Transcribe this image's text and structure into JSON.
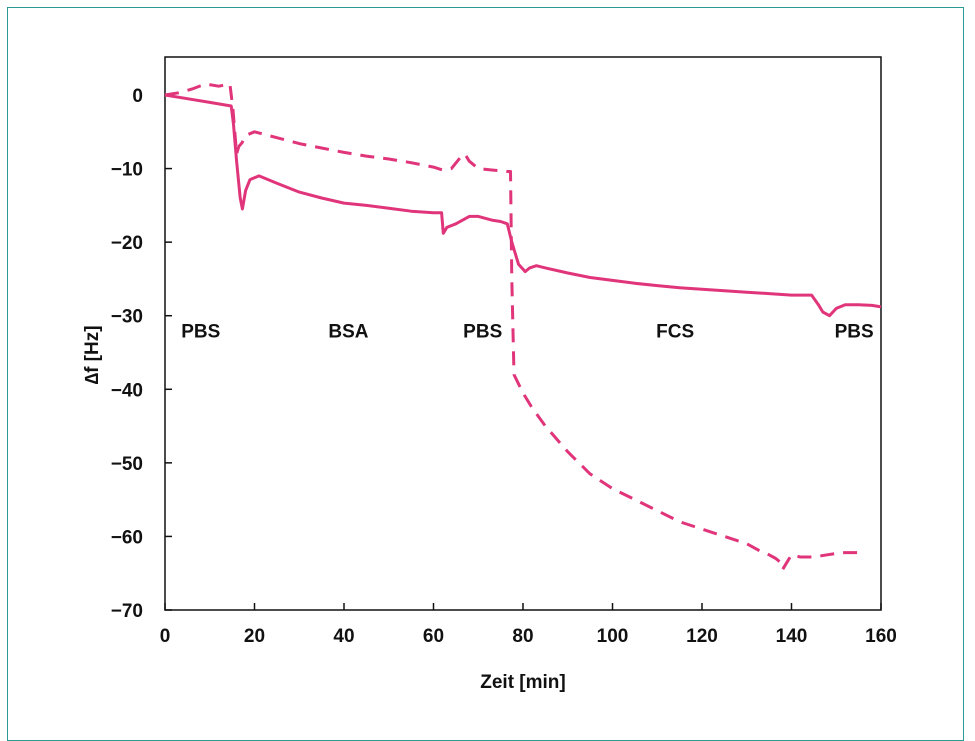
{
  "chart_data": {
    "type": "line",
    "title": "",
    "xlabel": "Zeit [min]",
    "ylabel": "∆f [Hz]",
    "xlim": [
      0,
      160
    ],
    "ylim": [
      -70,
      5
    ],
    "xticks": [
      "0",
      "20",
      "40",
      "60",
      "80",
      "100",
      "120",
      "140",
      "160"
    ],
    "yticks": [
      "0",
      "−10",
      "−20",
      "−30",
      "−40",
      "−50",
      "−60",
      "−70"
    ],
    "xtick_values": [
      0,
      20,
      40,
      60,
      80,
      100,
      120,
      140,
      160
    ],
    "ytick_values": [
      0,
      -10,
      -20,
      -30,
      -40,
      -50,
      -60,
      -70
    ],
    "grid": false,
    "legend": "none",
    "color": "#e0357a",
    "phase_labels": [
      {
        "text": "PBS",
        "x": 8,
        "y": -32
      },
      {
        "text": "BSA",
        "x": 41,
        "y": -32
      },
      {
        "text": "PBS",
        "x": 71,
        "y": -32
      },
      {
        "text": "FCS",
        "x": 114,
        "y": -32
      },
      {
        "text": "PBS",
        "x": 154,
        "y": -32
      }
    ],
    "series": [
      {
        "style": "solid",
        "x": [
          0,
          5,
          10,
          14.8,
          15.3,
          16,
          16.8,
          17.3,
          18,
          19,
          21,
          25,
          30,
          35,
          40,
          45,
          50,
          55,
          60,
          61.8,
          62.2,
          63,
          65,
          68,
          70,
          73,
          75,
          76.5,
          77.5,
          79,
          80.5,
          81.5,
          83,
          85,
          90,
          95,
          100,
          105,
          110,
          115,
          120,
          125,
          130,
          135,
          140,
          144.5,
          146,
          147,
          148.5,
          150,
          152,
          155,
          158,
          160
        ],
        "y": [
          0,
          -0.5,
          -1,
          -1.5,
          -4,
          -9,
          -14,
          -15.5,
          -13,
          -11.5,
          -11,
          -12,
          -13.2,
          -14,
          -14.7,
          -15,
          -15.4,
          -15.8,
          -16,
          -16,
          -18.8,
          -18,
          -17.5,
          -16.5,
          -16.5,
          -17,
          -17.2,
          -17.5,
          -20,
          -23,
          -24,
          -23.5,
          -23.2,
          -23.5,
          -24.2,
          -24.8,
          -25.2,
          -25.6,
          -25.9,
          -26.2,
          -26.4,
          -26.6,
          -26.8,
          -27,
          -27.2,
          -27.2,
          -28.5,
          -29.5,
          -30,
          -29,
          -28.5,
          -28.5,
          -28.6,
          -28.8
        ]
      },
      {
        "style": "dashed",
        "x": [
          0,
          3,
          6,
          9,
          12,
          14.5,
          15.2,
          16,
          16.5,
          17.2,
          18,
          20,
          25,
          30,
          35,
          40,
          45,
          50,
          55,
          60,
          62,
          64,
          66,
          67,
          68,
          70,
          73,
          75,
          76.5,
          77.2,
          77.5,
          78,
          80,
          82,
          85,
          90,
          95,
          100,
          105,
          110,
          115,
          120,
          125,
          130,
          133,
          135,
          136.5,
          137.5,
          138,
          139,
          140,
          142,
          145,
          148,
          150,
          152,
          155
        ],
        "y": [
          0,
          0.3,
          0.8,
          1.5,
          1.2,
          1.5,
          -2,
          -8,
          -7,
          -6.5,
          -5.5,
          -5,
          -5.8,
          -6.6,
          -7.2,
          -7.8,
          -8.3,
          -8.7,
          -9.2,
          -9.8,
          -10.2,
          -10,
          -8.5,
          -8,
          -9,
          -10,
          -10.2,
          -10.3,
          -10.4,
          -10.4,
          -25,
          -38,
          -40.5,
          -42.5,
          -45,
          -48.5,
          -51.5,
          -53.5,
          -55,
          -56.5,
          -58,
          -59,
          -60,
          -61,
          -62,
          -62.5,
          -63,
          -63.5,
          -64.5,
          -63.5,
          -62.5,
          -62.8,
          -62.8,
          -62.5,
          -62.3,
          -62.2,
          -62.2
        ]
      }
    ]
  }
}
